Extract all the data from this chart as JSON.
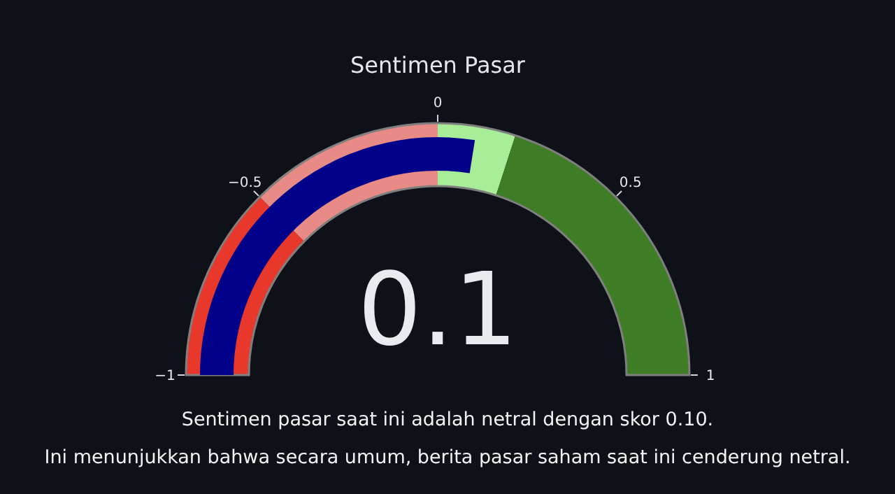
{
  "chart_data": {
    "type": "other",
    "title": "Sentimen Pasar",
    "values": [
      0.1
    ],
    "color": "#00008b",
    "data_labels": true,
    "annotations": [
      "−1",
      "−0.5",
      "0",
      "0.5",
      "1",
      "Sentimen pasar saat ini adalah netral dengan skor 0.10.",
      "Ini menunjukkan bahwa secara umum, berita pasar saham saat ini cenderung netral."
    ]
  }
}
